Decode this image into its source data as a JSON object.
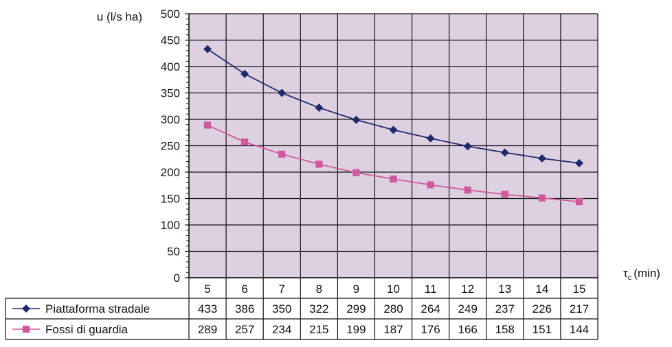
{
  "chart_data": {
    "type": "line",
    "ylabel": "u (l/s ha)",
    "xlabel": "τ",
    "xlabel_sub": "c",
    "xlabel_unit": "(min)",
    "ylim": [
      0,
      500
    ],
    "yticks": [
      0,
      50,
      100,
      150,
      200,
      250,
      300,
      350,
      400,
      450,
      500
    ],
    "grid": true,
    "plot_background": "#DDD0E0",
    "categories": [
      5,
      6,
      7,
      8,
      9,
      10,
      11,
      12,
      13,
      14,
      15
    ],
    "series": [
      {
        "name": "Piattaforma stradale",
        "color": "#1F2A6B",
        "marker": "diamond",
        "values": [
          433,
          386,
          350,
          322,
          299,
          280,
          264,
          249,
          237,
          226,
          217
        ]
      },
      {
        "name": "Fossi di guardia",
        "color": "#D0589E",
        "marker": "square",
        "values": [
          289,
          257,
          234,
          215,
          199,
          187,
          176,
          166,
          158,
          151,
          144
        ]
      }
    ],
    "legend": "data table below chart"
  }
}
